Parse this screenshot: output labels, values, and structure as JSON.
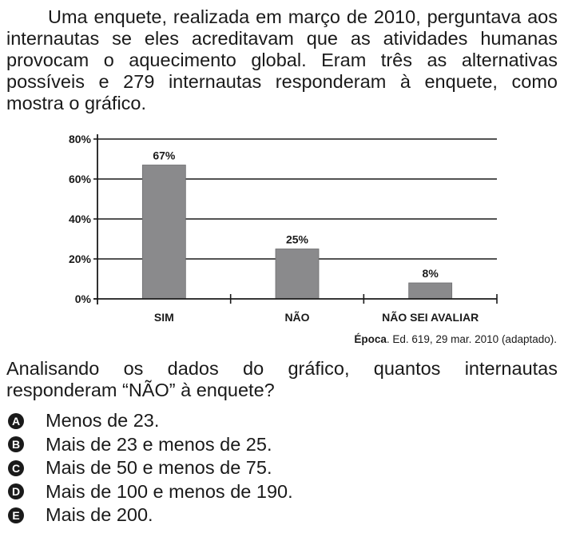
{
  "intro_text": "Uma enquete, realizada em março de 2010, perguntava aos internautas se eles acreditavam que as atividades humanas provocam o aquecimento global. Eram três as alternativas possíveis e 279 internautas responderam à enquete, como mostra o gráfico.",
  "source": {
    "publication": "Época",
    "details": ". Ed. 619, 29 mar. 2010 (adaptado)."
  },
  "question": "Analisando os dados do gráfico, quantos internautas responderam “NÃO” à enquete?",
  "options": [
    {
      "letter": "A",
      "text": "Menos de 23."
    },
    {
      "letter": "B",
      "text": "Mais de 23 e menos de 25."
    },
    {
      "letter": "C",
      "text": "Mais de 50 e menos de 75."
    },
    {
      "letter": "D",
      "text": "Mais de 100 e menos de 190."
    },
    {
      "letter": "E",
      "text": "Mais de 200."
    }
  ],
  "chart_data": {
    "type": "bar",
    "categories": [
      "SIM",
      "NÃO",
      "NÃO SEI AVALIAR"
    ],
    "values": [
      67,
      25,
      8
    ],
    "value_labels": [
      "67%",
      "25%",
      "8%"
    ],
    "ylim": [
      0,
      80
    ],
    "yticks": [
      0,
      20,
      40,
      60,
      80
    ],
    "ytick_labels": [
      "0%",
      "20%",
      "40%",
      "60%",
      "80%"
    ],
    "grid": true,
    "title": "",
    "xlabel": "",
    "ylabel": "",
    "bar_color": "#8a8a8c",
    "grid_color": "#1a1a1a"
  }
}
